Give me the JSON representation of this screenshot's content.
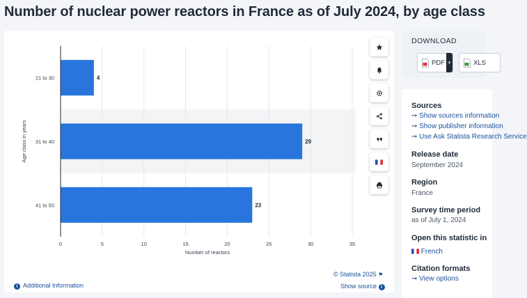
{
  "title": "Number of nuclear power reactors in France as of July 2024, by age class",
  "chart_data": {
    "type": "bar",
    "orientation": "horizontal",
    "categories": [
      "21 to 30",
      "31 to 40",
      "41 to 50"
    ],
    "values": [
      4,
      29,
      23
    ],
    "data_labels": [
      "4",
      "29",
      "23"
    ],
    "xlabel": "Number of reactors",
    "ylabel": "Age class in years",
    "xlim": [
      0,
      35
    ],
    "xticks": [
      "0",
      "5",
      "10",
      "15",
      "20",
      "25",
      "30",
      "35"
    ],
    "grid": true,
    "bar_color": "#2876dd"
  },
  "toolbar": {
    "items": [
      "star-icon",
      "bell-icon",
      "gear-icon",
      "share-icon",
      "quote-icon",
      "french-flag-icon",
      "print-icon"
    ]
  },
  "footer": {
    "credit": "© Statista 2025",
    "show_source": "Show source",
    "additional_info": "Additional Information"
  },
  "sidebar": {
    "download_title": "DOWNLOAD",
    "pdf_label": "PDF",
    "plus_label": "+",
    "xls_label": "XLS",
    "sources_label": "Sources",
    "sources_links": [
      "Show sources information",
      "Show publisher information",
      "Use Ask Statista Research Service"
    ],
    "release_label": "Release date",
    "release_value": "September 2024",
    "region_label": "Region",
    "region_value": "France",
    "survey_label": "Survey time period",
    "survey_value": "as of July 1, 2024",
    "open_label": "Open this statistic in",
    "open_value": "French",
    "citation_label": "Citation formats",
    "citation_value": "View options"
  }
}
